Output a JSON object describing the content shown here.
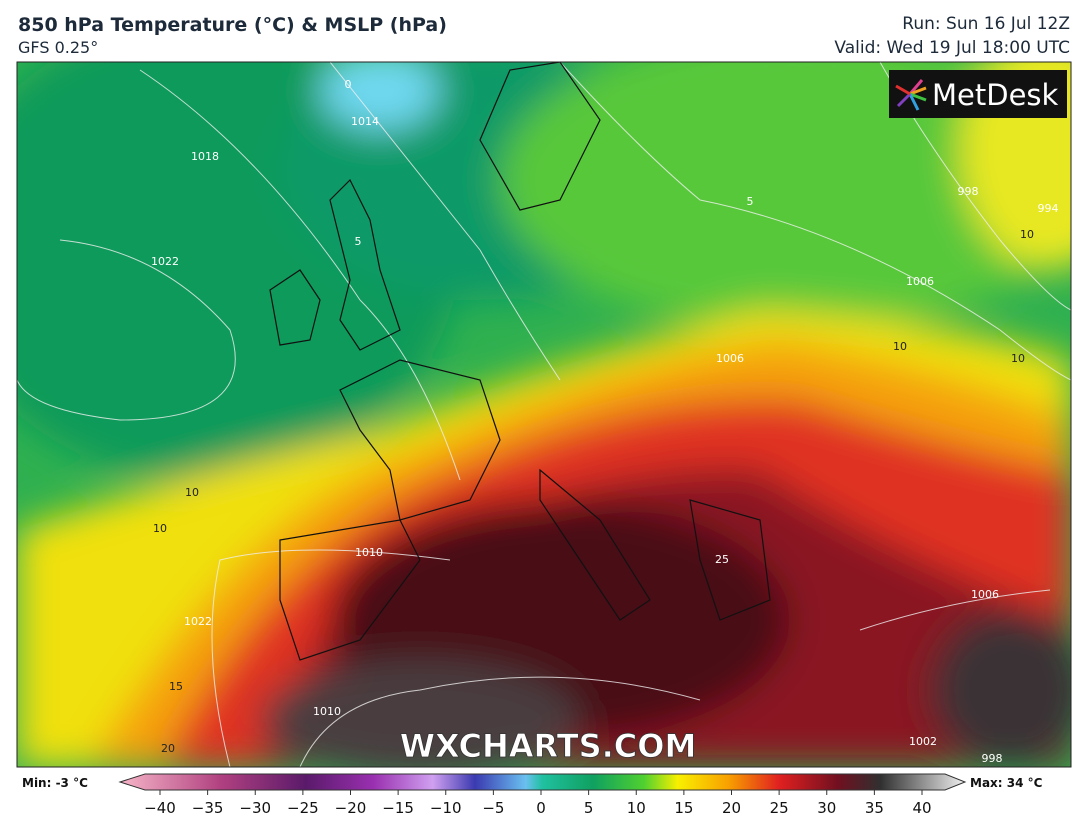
{
  "header": {
    "title": "850 hPa Temperature (°C) & MSLP (hPa)",
    "model": "GFS 0.25°",
    "run": "Run: Sun 16 Jul 12Z",
    "valid": "Valid: Wed 19 Jul 18:00 UTC"
  },
  "logo": "MetDesk",
  "watermark": "WXCHARTS.COM",
  "legend": {
    "min": "Min: -3 °C",
    "max": "Max: 34 °C",
    "ticks": [
      "−40",
      "−35",
      "−30",
      "−25",
      "−20",
      "−15",
      "−10",
      "−5",
      "0",
      "5",
      "10",
      "15",
      "20",
      "25",
      "30",
      "35",
      "40"
    ]
  },
  "contour_labels": [
    "0",
    "1014",
    "1018",
    "1022",
    "5",
    "10",
    "10",
    "10",
    "1022",
    "15",
    "20",
    "1010",
    "1010",
    "1006",
    "1006",
    "1006",
    "998",
    "994",
    "10",
    "10",
    "5",
    "1002",
    "998",
    "25"
  ]
}
